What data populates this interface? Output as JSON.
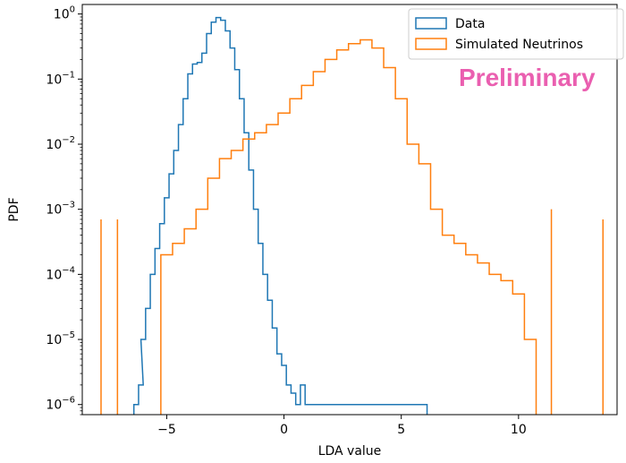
{
  "chart_data": {
    "type": "line",
    "style": "step-histogram",
    "xlabel": "LDA value",
    "ylabel": "PDF",
    "xlim": [
      -8.6,
      14.2
    ],
    "ylim": [
      7e-07,
      1.4
    ],
    "yscale": "log",
    "x_ticks": [
      -5,
      0,
      5,
      10
    ],
    "x_tick_labels": [
      "−5",
      "0",
      "5",
      "10"
    ],
    "y_ticks": [
      1e-06,
      1e-05,
      0.0001,
      0.001,
      0.01,
      0.1,
      1
    ],
    "y_tick_labels": [
      {
        "base": "10",
        "exp": "−6"
      },
      {
        "base": "10",
        "exp": "−5"
      },
      {
        "base": "10",
        "exp": "−4"
      },
      {
        "base": "10",
        "exp": "−3"
      },
      {
        "base": "10",
        "exp": "−2"
      },
      {
        "base": "10",
        "exp": "−1"
      },
      {
        "base": "10",
        "exp": "0"
      }
    ],
    "legend_position": "top-right",
    "annotation": "Preliminary",
    "annotation_color": "#ea5fb0",
    "series": [
      {
        "name": "Data",
        "color": "#1f77b4",
        "x": [
          -6.3,
          -6.1,
          -6.0,
          -5.8,
          -5.6,
          -5.4,
          -5.2,
          -5.0,
          -4.8,
          -4.6,
          -4.4,
          -4.2,
          -4.0,
          -3.8,
          -3.6,
          -3.4,
          -3.2,
          -3.0,
          -2.8,
          -2.6,
          -2.4,
          -2.2,
          -2.0,
          -1.8,
          -1.6,
          -1.4,
          -1.2,
          -1.0,
          -0.8,
          -0.6,
          -0.4,
          -0.2,
          0.0,
          0.2,
          0.4,
          0.6,
          0.8,
          1.0,
          1.5,
          2.0,
          2.5,
          3.0,
          3.5,
          4.0,
          4.5,
          5.0,
          5.5,
          6.0
        ],
        "y": [
          1e-06,
          2e-06,
          1e-05,
          3e-05,
          0.0001,
          0.00025,
          0.0006,
          0.0015,
          0.0035,
          0.008,
          0.02,
          0.05,
          0.12,
          0.17,
          0.18,
          0.25,
          0.5,
          0.75,
          0.88,
          0.8,
          0.55,
          0.3,
          0.14,
          0.05,
          0.015,
          0.004,
          0.001,
          0.0003,
          0.0001,
          4e-05,
          1.5e-05,
          6e-06,
          4e-06,
          2e-06,
          1.5e-06,
          1e-06,
          2e-06,
          1e-06,
          1e-06,
          1e-06,
          1e-06,
          1e-06,
          1e-06,
          1e-06,
          1e-06,
          1e-06,
          1e-06,
          1e-06
        ]
      },
      {
        "name": "Simulated Neutrinos",
        "color": "#ff7f0e",
        "x": [
          -5.0,
          -4.5,
          -4.0,
          -3.5,
          -3.0,
          -2.5,
          -2.0,
          -1.5,
          -1.0,
          -0.5,
          0.0,
          0.5,
          1.0,
          1.5,
          2.0,
          2.5,
          3.0,
          3.5,
          4.0,
          4.5,
          5.0,
          5.5,
          6.0,
          6.5,
          7.0,
          7.5,
          8.0,
          8.5,
          9.0,
          9.5,
          10.0,
          10.5
        ],
        "y": [
          0.0002,
          0.0003,
          0.0005,
          0.001,
          0.003,
          0.006,
          0.008,
          0.012,
          0.015,
          0.02,
          0.03,
          0.05,
          0.08,
          0.13,
          0.2,
          0.28,
          0.35,
          0.4,
          0.3,
          0.15,
          0.05,
          0.01,
          0.005,
          0.001,
          0.0004,
          0.0003,
          0.0002,
          0.00015,
          0.0001,
          8e-05,
          5e-05,
          1e-05
        ],
        "outliers": [
          {
            "x": -7.8,
            "y": 0.0007
          },
          {
            "x": -7.1,
            "y": 0.0007
          },
          {
            "x": 11.4,
            "y": 0.001
          },
          {
            "x": 13.6,
            "y": 0.0007
          }
        ]
      }
    ]
  }
}
